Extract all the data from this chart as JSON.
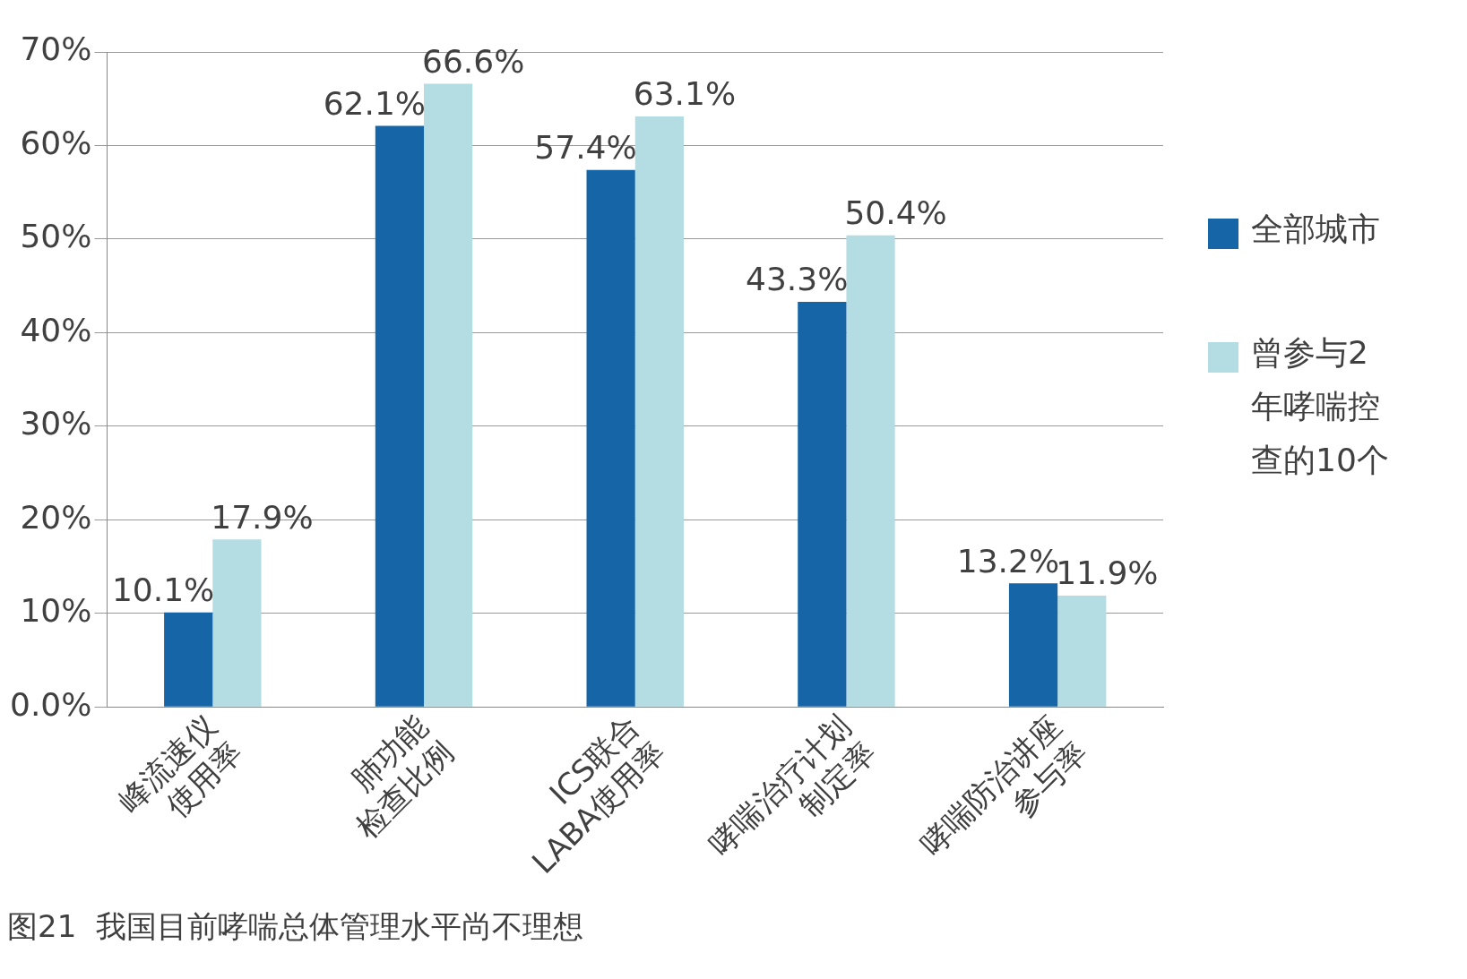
{
  "chart_data": {
    "type": "bar",
    "title": "图21  我国目前哮喘总体管理水平尚不理想",
    "categories": [
      "峰流速仪\n使用率",
      "肺功能\n检查比例",
      "ICS联合\nLABA使用率",
      "哮喘治疗计划\n制定率",
      "哮喘防治讲座\n参与率"
    ],
    "series": [
      {
        "name": "全部城市",
        "color": "#1565a7",
        "values": [
          10.1,
          62.1,
          57.4,
          43.3,
          13.2
        ],
        "value_labels": [
          "10.1%",
          "62.1%",
          "57.4%",
          "43.3%",
          "13.2%"
        ]
      },
      {
        "name": "曾参与2年哮喘控查的10个",
        "color": "#b3dce3",
        "values": [
          17.9,
          66.6,
          63.1,
          50.4,
          11.9
        ],
        "value_labels": [
          "17.9%",
          "66.6%",
          "63.1%",
          "50.4%",
          "11.9%"
        ]
      }
    ],
    "ylim": [
      0,
      70
    ],
    "yticks": [
      {
        "value": 0,
        "label": "0.0%"
      },
      {
        "value": 10,
        "label": "10%"
      },
      {
        "value": 20,
        "label": "20%"
      },
      {
        "value": 30,
        "label": "30%"
      },
      {
        "value": 40,
        "label": "40%"
      },
      {
        "value": 50,
        "label": "50%"
      },
      {
        "value": 60,
        "label": "60%"
      },
      {
        "value": 70,
        "label": "70%"
      }
    ],
    "grid": "y",
    "legend": "right"
  }
}
